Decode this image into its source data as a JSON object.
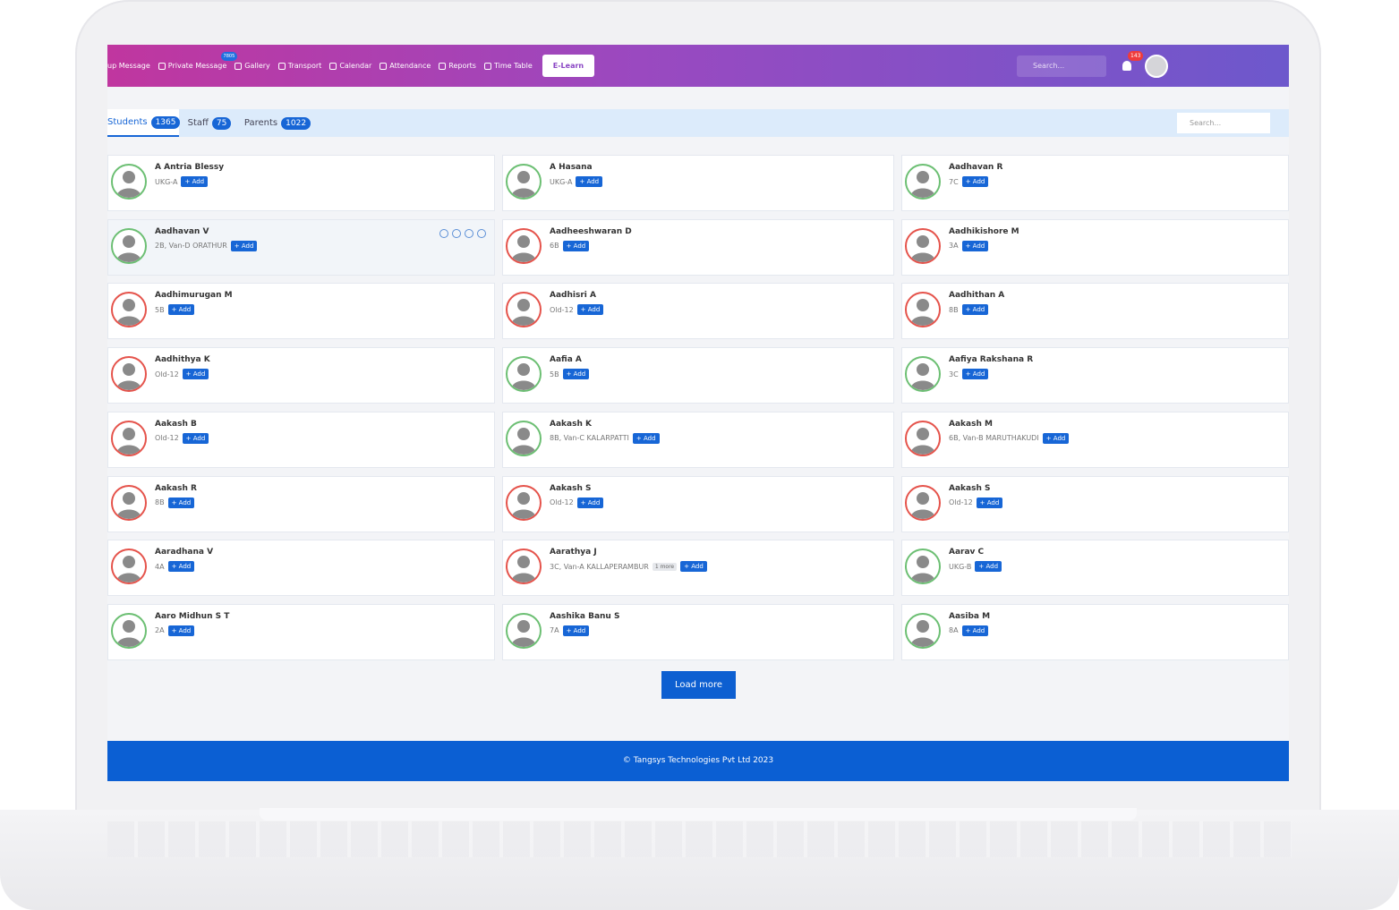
{
  "nav": {
    "items": [
      "up Message",
      "Private Message",
      "Gallery",
      "Transport",
      "Calendar",
      "Attendance",
      "Reports",
      "Time Table"
    ],
    "private_message_badge": "7805",
    "elearn": "E-Learn",
    "search_placeholder": "Search...",
    "notification_count": "143"
  },
  "tabs": [
    {
      "label": "Students",
      "count": "1365"
    },
    {
      "label": "Staff",
      "count": "75"
    },
    {
      "label": "Parents",
      "count": "1022"
    }
  ],
  "tab_search_placeholder": "Search...",
  "add_label": "+ Add",
  "students": [
    {
      "name": "A Antria Blessy",
      "info": "UKG-A",
      "ring": "#6cbf73"
    },
    {
      "name": "A Hasana",
      "info": "UKG-A",
      "ring": "#6cbf73"
    },
    {
      "name": "Aadhavan R",
      "info": "7C",
      "ring": "#6cbf73"
    },
    {
      "name": "Aadhavan V",
      "info": "2B, Van-D ORATHUR",
      "ring": "#6cbf73"
    },
    {
      "name": "Aadheeshwaran D",
      "info": "6B",
      "ring": "#e5534b"
    },
    {
      "name": "Aadhikishore M",
      "info": "3A",
      "ring": "#e5534b"
    },
    {
      "name": "Aadhimurugan M",
      "info": "5B",
      "ring": "#e5534b"
    },
    {
      "name": "Aadhisri A",
      "info": "Old-12",
      "ring": "#e5534b"
    },
    {
      "name": "Aadhithan A",
      "info": "8B",
      "ring": "#e5534b"
    },
    {
      "name": "Aadhithya K",
      "info": "Old-12",
      "ring": "#e5534b"
    },
    {
      "name": "Aafia A",
      "info": "5B",
      "ring": "#6cbf73"
    },
    {
      "name": "Aafiya Rakshana R",
      "info": "3C",
      "ring": "#6cbf73"
    },
    {
      "name": "Aakash B",
      "info": "Old-12",
      "ring": "#e5534b"
    },
    {
      "name": "Aakash K",
      "info": "8B, Van-C KALARPATTI",
      "ring": "#6cbf73"
    },
    {
      "name": "Aakash M",
      "info": "6B, Van-B MARUTHAKUDI",
      "ring": "#e5534b"
    },
    {
      "name": "Aakash R",
      "info": "8B",
      "ring": "#e5534b"
    },
    {
      "name": "Aakash S",
      "info": "Old-12",
      "ring": "#e5534b"
    },
    {
      "name": "Aakash S",
      "info": "Old-12",
      "ring": "#e5534b"
    },
    {
      "name": "Aaradhana V",
      "info": "4A",
      "ring": "#e5534b"
    },
    {
      "name": "Aarathya J",
      "info": "3C, Van-A KALLAPERAMBUR",
      "more": "1 more",
      "ring": "#e5534b"
    },
    {
      "name": "Aarav C",
      "info": "UKG-B",
      "ring": "#6cbf73"
    },
    {
      "name": "Aaro Midhun S T",
      "info": "2A",
      "ring": "#6cbf73"
    },
    {
      "name": "Aashika Banu S",
      "info": "7A",
      "ring": "#6cbf73"
    },
    {
      "name": "Aasiba M",
      "info": "8A",
      "ring": "#6cbf73"
    }
  ],
  "load_more": "Load more",
  "footer": "© Tangsys Technologies Pvt Ltd 2023"
}
